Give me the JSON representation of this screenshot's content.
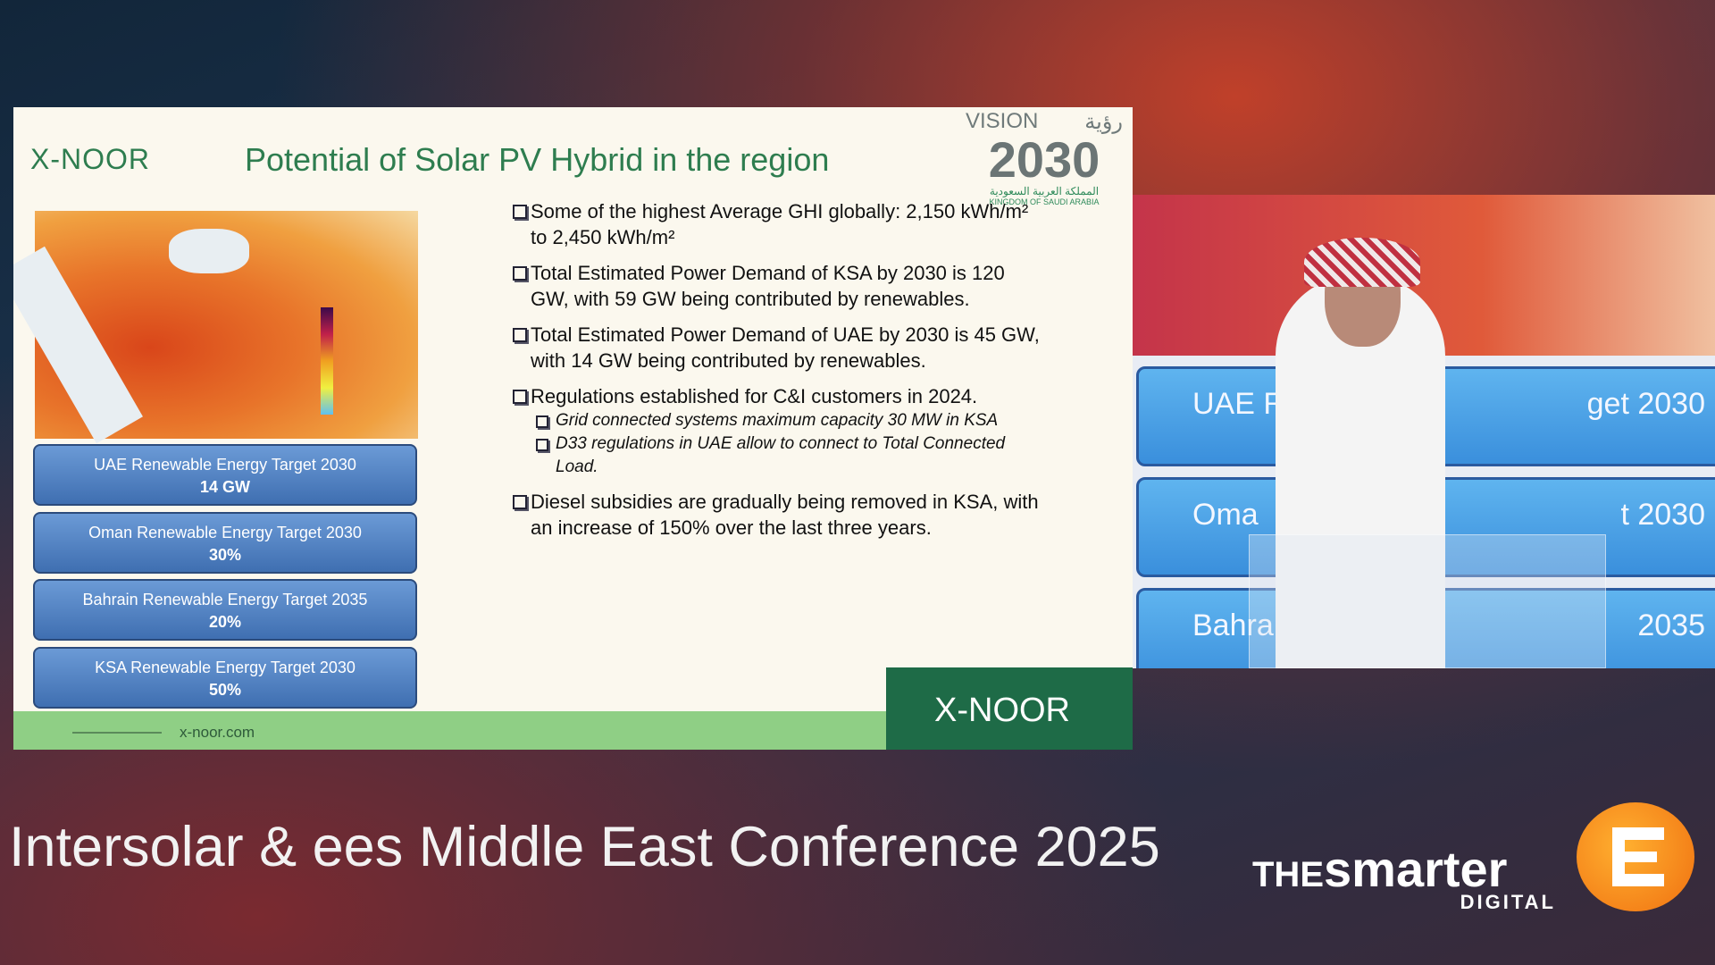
{
  "slide": {
    "logo": "X-NOOR",
    "title": "Potential of Solar PV Hybrid in the region",
    "vision": {
      "word": "VISION",
      "arabic_word": "رؤية",
      "year": "2030",
      "arabic_kingdom": "المملكة العربية السعودية",
      "kingdom": "KINGDOM OF SAUDI ARABIA"
    },
    "targets": [
      {
        "label": "UAE Renewable Energy Target 2030",
        "value": "14 GW"
      },
      {
        "label": "Oman Renewable Energy Target 2030",
        "value": "30%"
      },
      {
        "label": "Bahrain Renewable Energy Target 2035",
        "value": "20%"
      },
      {
        "label": "KSA Renewable Energy Target 2030",
        "value": "50%"
      }
    ],
    "bullets": [
      {
        "text": "Some of the highest Average GHI globally: 2,150 kWh/m² to 2,450 kWh/m²",
        "sub": []
      },
      {
        "text": "Total Estimated Power Demand of KSA by 2030 is 120 GW, with 59 GW being contributed by renewables.",
        "sub": []
      },
      {
        "text": "Total Estimated Power Demand of UAE by 2030 is 45 GW, with 14 GW being contributed by renewables.",
        "sub": []
      },
      {
        "text": "Regulations established for C&I customers in 2024.",
        "sub": [
          "Grid connected systems maximum capacity 30 MW in KSA",
          "D33 regulations in UAE allow to connect to Total Connected Load."
        ]
      },
      {
        "text": "Diesel subsidies are gradually being removed in KSA, with an increase of 150% over the last three years.",
        "sub": []
      }
    ],
    "website": "x-noor.com",
    "footer_logo": "X-NOOR"
  },
  "video": {
    "overlay_texts": [
      "UAE Rene",
      "get 2030",
      "Oma",
      "t 2030",
      "Bahrain R",
      "2035"
    ]
  },
  "banner": {
    "text": "Intersolar & ees Middle East Conference 2025",
    "brand_the": "THE",
    "brand_name": "smarter",
    "brand_sub": "DIGITAL"
  }
}
